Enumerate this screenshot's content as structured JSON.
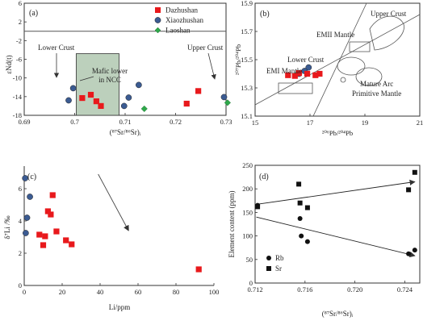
{
  "chart_data": [
    {
      "panel_label": "(a)",
      "type": "scatter",
      "xlabel": "(⁸⁷Sr/⁸⁶Sr)ᵢ",
      "ylabel": "εNd(t)",
      "xlim": [
        0.69,
        0.73
      ],
      "ylim": [
        -18,
        6
      ],
      "xticks": [
        "0.69",
        "0.7",
        "0.71",
        "0.72",
        "0.73"
      ],
      "yticks": [
        "6",
        "2",
        "-2",
        "-6",
        "-10",
        "-14",
        "-18"
      ],
      "legend_position": "top-right",
      "series": [
        {
          "name": "Dazhushan",
          "marker": "square",
          "color": "#e8191c",
          "points": [
            [
              0.7015,
              -14.3
            ],
            [
              0.7032,
              -13.6
            ],
            [
              0.7043,
              -15.0
            ],
            [
              0.7052,
              -16.0
            ],
            [
              0.7222,
              -15.5
            ],
            [
              0.7245,
              -12.8
            ]
          ]
        },
        {
          "name": "Xiaozhushan",
          "marker": "circle",
          "color": "#3b5b92",
          "points": [
            [
              0.6988,
              -14.8
            ],
            [
              0.6997,
              -12.2
            ],
            [
              0.7098,
              -16.0
            ],
            [
              0.7107,
              -14.2
            ],
            [
              0.7127,
              -11.5
            ],
            [
              0.7296,
              -14.1
            ]
          ]
        },
        {
          "name": "Laoshan",
          "marker": "diamond",
          "color": "#2ea84a",
          "points": [
            [
              0.7138,
              -16.6
            ],
            [
              0.7303,
              -15.3
            ]
          ]
        }
      ],
      "reference_line_y": 0,
      "mafic_box": {
        "x": [
          0.7003,
          0.7088
        ],
        "y": [
          -18,
          -4.8
        ]
      },
      "annotations": {
        "lower_crust": "Lower Crust",
        "mafic_lower": [
          "Mafic lower",
          "in NCC"
        ],
        "upper_crust": "Upper Crust"
      }
    },
    {
      "panel_label": "(b)",
      "type": "scatter",
      "xlabel": "²⁰⁶Pb/²⁰⁴Pb",
      "ylabel": "²⁰⁷Pb/²⁰⁴Pb",
      "xlim": [
        15,
        21
      ],
      "ylim": [
        15.1,
        15.9
      ],
      "xticks": [
        "15",
        "17",
        "19",
        "21"
      ],
      "yticks": [
        "15.9",
        "15.7",
        "15.5",
        "15.3",
        "15.1"
      ],
      "dazhushan": [
        [
          16.2,
          15.39
        ],
        [
          16.45,
          15.385
        ],
        [
          16.6,
          15.405
        ],
        [
          16.9,
          15.4
        ],
        [
          17.2,
          15.39
        ],
        [
          17.35,
          15.4
        ]
      ],
      "xiaozhushan": [
        [
          16.6,
          15.4
        ],
        [
          16.95,
          15.445
        ],
        [
          16.8,
          15.42
        ]
      ],
      "laoshan": [
        [
          16.5,
          15.395
        ]
      ],
      "labels": {
        "upper_crust": "Upper Crust",
        "emii": "EMII Mantle",
        "lower_crust": "Lower Crust",
        "emi": "EMI Mantle",
        "mature_arc": "Mature Arc",
        "primitive_mantle": "Primitive Mantle"
      }
    },
    {
      "panel_label": "(c)",
      "type": "scatter",
      "xlabel": "Li/ppm",
      "ylabel": "δ⁷Li /‰",
      "xlim": [
        0,
        100
      ],
      "ylim": [
        0,
        7
      ],
      "xticks": [
        "0",
        "20",
        "40",
        "60",
        "80",
        "100"
      ],
      "yticks": [
        "0",
        "2",
        "4",
        "6"
      ],
      "dazhushan": [
        [
          8,
          3.15
        ],
        [
          11,
          3.05
        ],
        [
          12.5,
          4.6
        ],
        [
          14,
          4.4
        ],
        [
          15,
          5.6
        ],
        [
          17,
          3.35
        ],
        [
          22,
          2.8
        ],
        [
          25,
          2.55
        ],
        [
          10,
          2.5
        ],
        [
          92,
          1.0
        ]
      ],
      "xiaozhushan": [
        [
          0.5,
          6.65
        ],
        [
          0.8,
          3.25
        ],
        [
          1.5,
          4.2
        ],
        [
          3,
          5.5
        ]
      ],
      "arrow": {
        "from": [
          39,
          6.9
        ],
        "to": [
          55,
          3.4
        ]
      }
    },
    {
      "panel_label": "(d)",
      "type": "scatter",
      "xlabel": "(⁸⁷Sr/⁸⁶Sr)ᵢ",
      "ylabel": "Element content (ppm)",
      "xlim": [
        0.712,
        0.7252
      ],
      "ylim": [
        0,
        250
      ],
      "xticks": [
        "0.712",
        "0.716",
        "0.720",
        "0.724"
      ],
      "yticks": [
        "0",
        "50",
        "100",
        "150",
        "200",
        "250"
      ],
      "legend_position": "bottom-left",
      "series": [
        {
          "name": "Rb",
          "marker": "circle",
          "color": "#111111",
          "points": [
            [
              0.7122,
              165
            ],
            [
              0.7156,
              137
            ],
            [
              0.7157,
              100
            ],
            [
              0.7162,
              88
            ],
            [
              0.7243,
              62
            ],
            [
              0.7248,
              70
            ]
          ]
        },
        {
          "name": "Sr",
          "marker": "square",
          "color": "#111111",
          "points": [
            [
              0.7122,
              162
            ],
            [
              0.7155,
              210
            ],
            [
              0.7156,
              170
            ],
            [
              0.7162,
              160
            ],
            [
              0.7243,
              198
            ],
            [
              0.7248,
              235
            ]
          ]
        }
      ],
      "arrows": [
        {
          "from": [
            0.7121,
            167
          ],
          "to": [
            0.7248,
            215
          ]
        },
        {
          "from": [
            0.7121,
            140
          ],
          "to": [
            0.7248,
            58
          ]
        }
      ]
    }
  ],
  "colors": {
    "dazhushan": "#e8191c",
    "xiaozhushan": "#3b5b92",
    "laoshan": "#2ea84a",
    "mafic_box": "#bcd0bc"
  }
}
